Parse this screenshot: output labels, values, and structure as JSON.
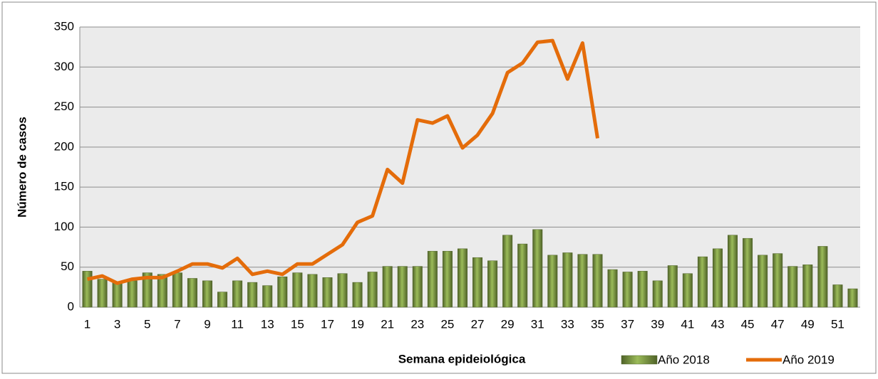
{
  "chart_data": {
    "type": "bar",
    "x_label": "Semana epideiológica",
    "y_label": "Número de casos",
    "categories": [
      1,
      null,
      3,
      null,
      5,
      null,
      7,
      null,
      9,
      null,
      11,
      null,
      13,
      null,
      15,
      null,
      17,
      null,
      19,
      null,
      21,
      null,
      23,
      null,
      25,
      null,
      27,
      null,
      29,
      null,
      31,
      null,
      33,
      null,
      35,
      null,
      37,
      null,
      39,
      null,
      41,
      null,
      43,
      null,
      45,
      null,
      47,
      null,
      49,
      null,
      51,
      null
    ],
    "series": [
      {
        "name": "Año 2018",
        "type": "bar",
        "color": "#76923c",
        "values": [
          45,
          35,
          32,
          33,
          43,
          41,
          43,
          36,
          33,
          19,
          33,
          31,
          27,
          38,
          43,
          41,
          37,
          42,
          31,
          44,
          51,
          51,
          51,
          70,
          70,
          73,
          62,
          58,
          90,
          79,
          97,
          65,
          68,
          66,
          66,
          47,
          44,
          45,
          33,
          52,
          42,
          63,
          73,
          90,
          86,
          65,
          67,
          51,
          53,
          76,
          28,
          23
        ]
      },
      {
        "name": "Año 2019",
        "type": "line",
        "color": "#e46c0a",
        "values": [
          35,
          39,
          30,
          35,
          37,
          37,
          45,
          54,
          54,
          49,
          61,
          41,
          45,
          41,
          54,
          54,
          66,
          78,
          106,
          114,
          172,
          155,
          234,
          230,
          239,
          199,
          215,
          242,
          293,
          305,
          331,
          333,
          285,
          330,
          211,
          null,
          null,
          null,
          null,
          null,
          null,
          null,
          null,
          null,
          null,
          null,
          null,
          null,
          null,
          null,
          null,
          null
        ]
      }
    ],
    "ylim": [
      0,
      350
    ],
    "yticks": [
      0,
      50,
      100,
      150,
      200,
      250,
      300,
      350
    ],
    "grid": true,
    "legend": "bottom-right"
  }
}
